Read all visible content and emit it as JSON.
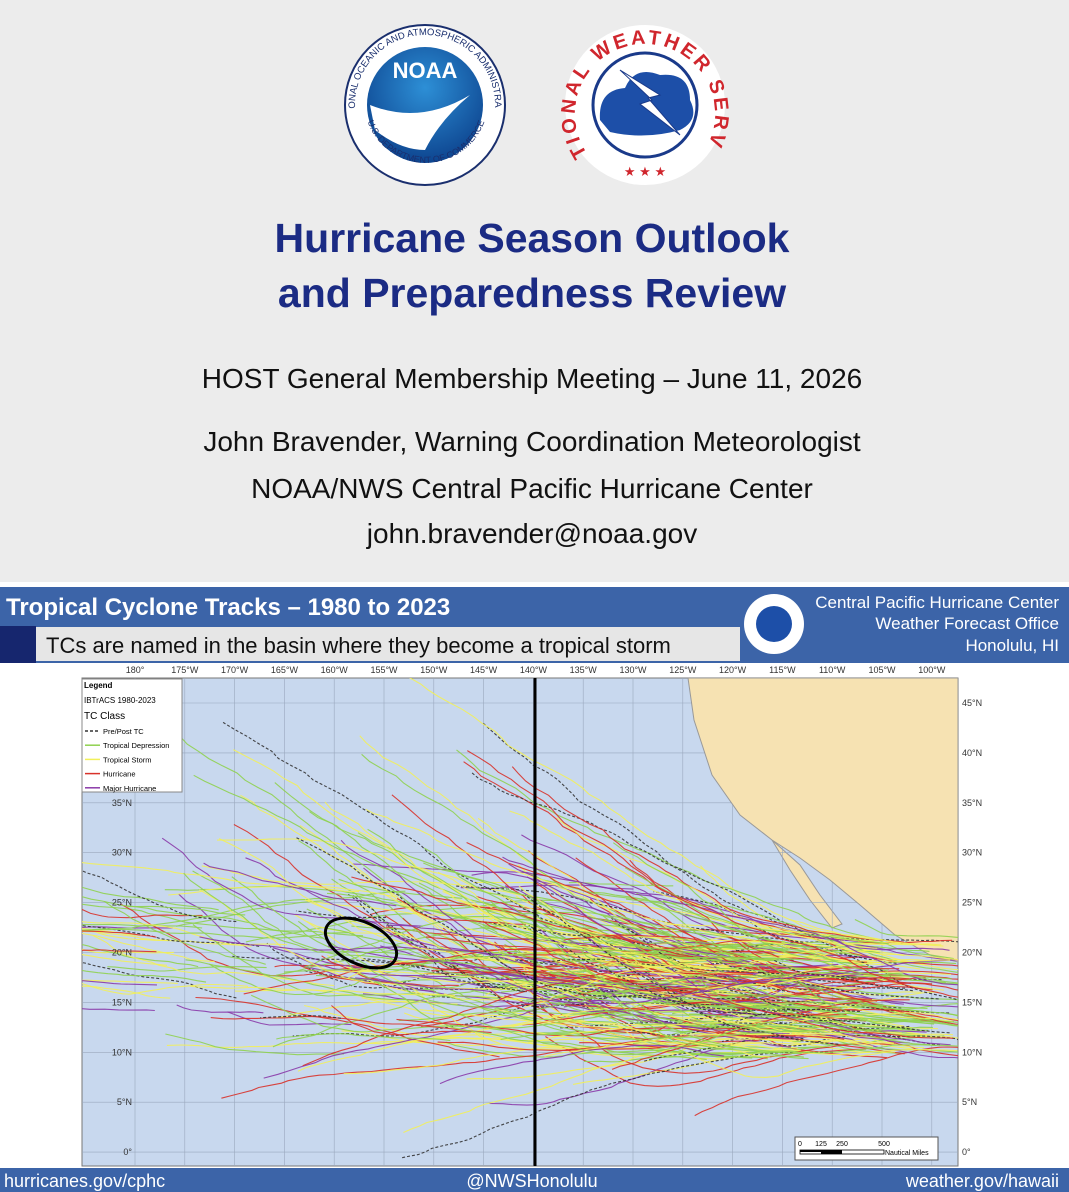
{
  "logos": {
    "noaa": {
      "label": "NOAA",
      "ring_top": "NATIONAL OCEANIC AND ATMOSPHERIC ADMINISTRATION",
      "ring_bottom": "U.S. DEPARTMENT OF COMMERCE"
    },
    "nws": {
      "ring": "NATIONAL WEATHER SERVICE"
    }
  },
  "header": {
    "title_lines": [
      "Hurricane Season Outlook",
      "and Preparedness Review"
    ],
    "meeting": "HOST General Membership Meeting – June 11, 2026",
    "presenter": [
      "John Bravender, Warning Coordination Meteorologist",
      "NOAA/NWS Central Pacific Hurricane Center",
      "john.bravender@noaa.gov"
    ]
  },
  "map": {
    "title": "Tropical Cyclone Tracks – 1980 to 2023",
    "subtitle": "TCs are named in the basin where they become a tropical storm",
    "office": [
      "Central Pacific Hurricane Center",
      "Weather Forecast Office",
      "Honolulu, HI"
    ],
    "legend": {
      "title": "Legend",
      "source": "IBTrACS 1980-2023",
      "class_heading": "TC Class",
      "items": [
        {
          "label": "Pre/Post TC",
          "color": "#333333",
          "dashed": true
        },
        {
          "label": "Tropical Depression",
          "color": "#8fd14f"
        },
        {
          "label": "Tropical Storm",
          "color": "#f2f05a"
        },
        {
          "label": "Hurricane",
          "color": "#d8322a"
        },
        {
          "label": "Major Hurricane",
          "color": "#8a3aa8"
        }
      ]
    },
    "longitude_labels": [
      "180°",
      "175°W",
      "170°W",
      "165°W",
      "160°W",
      "155°W",
      "150°W",
      "145°W",
      "140°W",
      "135°W",
      "130°W",
      "125°W",
      "120°W",
      "115°W",
      "110°W",
      "105°W",
      "100°W"
    ],
    "latitude_labels": [
      "45°N",
      "40°N",
      "35°N",
      "30°N",
      "25°N",
      "20°N",
      "15°N",
      "10°N",
      "5°N",
      "0°"
    ],
    "scale": {
      "ticks": [
        0,
        125,
        250,
        500
      ],
      "unit": "Nautical Miles"
    }
  },
  "footer": [
    "hurricanes.gov/cphc",
    "@NWSHonolulu",
    "weather.gov/hawaii"
  ]
}
